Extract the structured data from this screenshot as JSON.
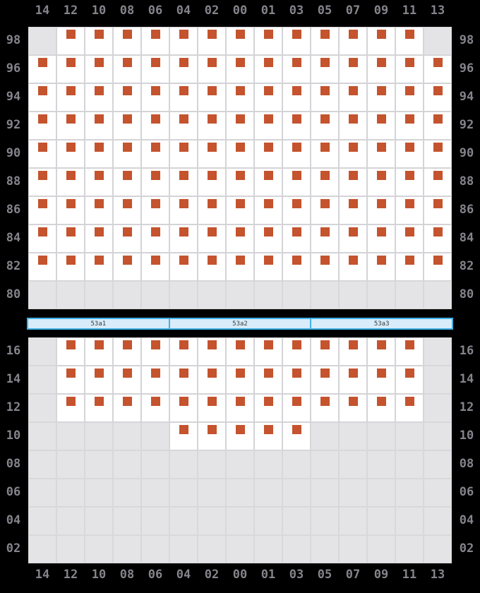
{
  "colors": {
    "background": "#000000",
    "seat_marker": "#c4532e",
    "cell_available": "#ffffff",
    "cell_empty": "#e4e4e7",
    "grid_line": "#d4d4d8",
    "axis_label": "#84848c",
    "bar_fill": "#d9ecfa",
    "bar_border": "#41b1e6",
    "bar_text": "#3a3a3a"
  },
  "columns": [
    "14",
    "12",
    "10",
    "08",
    "06",
    "04",
    "02",
    "00",
    "01",
    "03",
    "05",
    "07",
    "09",
    "11",
    "13"
  ],
  "grids": {
    "top": {
      "row_labels": [
        "98",
        "96",
        "94",
        "92",
        "90",
        "88",
        "86",
        "84",
        "82",
        "80"
      ],
      "rows": [
        "011111111111110",
        "111111111111111",
        "111111111111111",
        "111111111111111",
        "111111111111111",
        "111111111111111",
        "111111111111111",
        "111111111111111",
        "111111111111111",
        "000000000000000"
      ]
    },
    "bottom": {
      "row_labels": [
        "16",
        "14",
        "12",
        "10",
        "08",
        "06",
        "04",
        "02"
      ],
      "rows": [
        "011111111111110",
        "011111111111110",
        "011111111111110",
        "000001111100000",
        "000000000000000",
        "000000000000000",
        "000000000000000",
        "000000000000000"
      ]
    }
  },
  "section_bar": {
    "segments": [
      {
        "label": "53a1"
      },
      {
        "label": "53a2"
      },
      {
        "label": "53a3"
      }
    ]
  }
}
